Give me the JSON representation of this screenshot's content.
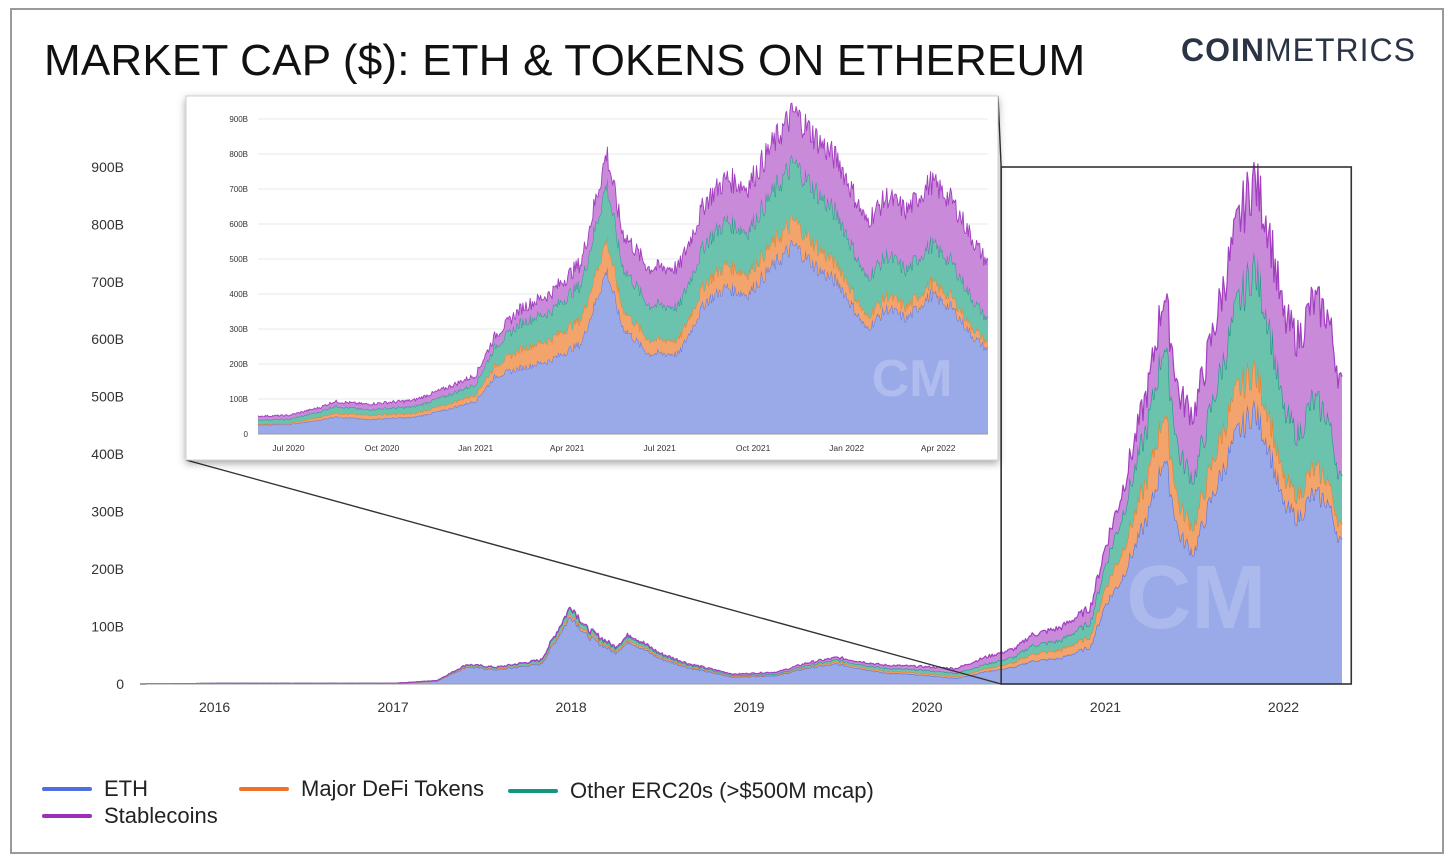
{
  "title": "MARKET CAP ($): ETH & TOKENS ON ETHEREUM",
  "brand": {
    "bold": "COIN",
    "light": "METRICS"
  },
  "colors": {
    "eth": "#5b73e0",
    "eth_fill": "#9aaae8",
    "defi": "#f07f2e",
    "defi_fill": "#f3a46c",
    "erc20": "#1e9a86",
    "erc20_fill": "#6cc3ad",
    "stable": "#a23fc0",
    "stable_fill": "#c98ad9"
  },
  "chart_data": [
    {
      "type": "area",
      "stacked": true,
      "yticks": [
        "0",
        "100B",
        "200B",
        "300B",
        "400B",
        "500B",
        "600B",
        "700B",
        "800B",
        "900B"
      ],
      "ylim": [
        0,
        900
      ],
      "y_unit": "B USD",
      "xticks": [
        "2016",
        "2017",
        "2018",
        "2019",
        "2020",
        "2021",
        "2022"
      ],
      "xlim": [
        "2015-08",
        "2022-05"
      ],
      "x": [
        "2015-08",
        "2016-01",
        "2016-06",
        "2017-01",
        "2017-04",
        "2017-06",
        "2017-08",
        "2017-11",
        "2018-01",
        "2018-02",
        "2018-04",
        "2018-05",
        "2018-07",
        "2018-09",
        "2018-12",
        "2019-03",
        "2019-05",
        "2019-07",
        "2019-10",
        "2020-01",
        "2020-03",
        "2020-05",
        "2020-07",
        "2020-08",
        "2020-10",
        "2020-12",
        "2021-01",
        "2021-02",
        "2021-04",
        "2021-05",
        "2021-06",
        "2021-07",
        "2021-08",
        "2021-09",
        "2021-10",
        "2021-11",
        "2021-12",
        "2022-01",
        "2022-02",
        "2022-03",
        "2022-04",
        "2022-05"
      ],
      "series": [
        {
          "name": "ETH",
          "values": [
            0,
            1,
            1,
            1,
            5,
            30,
            25,
            35,
            120,
            85,
            55,
            75,
            45,
            28,
            12,
            15,
            28,
            35,
            20,
            15,
            10,
            22,
            30,
            40,
            45,
            65,
            140,
            180,
            300,
            400,
            260,
            230,
            310,
            380,
            440,
            480,
            420,
            310,
            290,
            330,
            320,
            240
          ]
        },
        {
          "name": "Major DeFi Tokens",
          "values": [
            0,
            0,
            0,
            0,
            0,
            1,
            1,
            2,
            5,
            4,
            3,
            4,
            3,
            2,
            1,
            1,
            2,
            3,
            3,
            3,
            3,
            5,
            8,
            12,
            14,
            18,
            30,
            45,
            70,
            80,
            50,
            45,
            55,
            70,
            75,
            70,
            60,
            45,
            40,
            45,
            40,
            25
          ]
        },
        {
          "name": "Other ERC20s (>$500M mcap)",
          "values": [
            0,
            0,
            0,
            0,
            1,
            3,
            3,
            4,
            10,
            7,
            5,
            6,
            4,
            3,
            2,
            2,
            3,
            4,
            5,
            6,
            6,
            8,
            10,
            15,
            17,
            25,
            40,
            60,
            95,
            120,
            90,
            85,
            100,
            120,
            150,
            180,
            160,
            120,
            105,
            120,
            110,
            80
          ]
        },
        {
          "name": "Stablecoins",
          "values": [
            0,
            0,
            0,
            0,
            0,
            0,
            0,
            1,
            2,
            2,
            2,
            2,
            2,
            2,
            2,
            3,
            4,
            4,
            5,
            6,
            8,
            12,
            14,
            18,
            22,
            25,
            30,
            40,
            60,
            85,
            100,
            110,
            115,
            125,
            140,
            150,
            160,
            160,
            165,
            170,
            175,
            165
          ]
        }
      ]
    },
    {
      "type": "area",
      "stacked": true,
      "yticks": [
        "0",
        "100B",
        "200B",
        "300B",
        "400B",
        "500B",
        "600B",
        "700B",
        "800B",
        "900B"
      ],
      "ylim": [
        0,
        900
      ],
      "y_unit": "B USD",
      "xticks": [
        "Jul 2020",
        "Oct 2020",
        "Jan 2021",
        "Apr 2021",
        "Jul 2021",
        "Oct 2021",
        "Jan 2022",
        "Apr 2022"
      ],
      "xlim": [
        "2020-06-01",
        "2022-05-20"
      ],
      "x": [
        "2020-06-01",
        "2020-07-01",
        "2020-08-01",
        "2020-08-15",
        "2020-09-15",
        "2020-11-01",
        "2020-12-01",
        "2021-01-01",
        "2021-01-20",
        "2021-02-15",
        "2021-03-15",
        "2021-04-15",
        "2021-05-10",
        "2021-05-25",
        "2021-06-20",
        "2021-07-20",
        "2021-08-15",
        "2021-09-05",
        "2021-09-25",
        "2021-10-20",
        "2021-11-10",
        "2021-12-05",
        "2021-12-25",
        "2022-01-20",
        "2022-02-10",
        "2022-03-01",
        "2022-03-25",
        "2022-04-15",
        "2022-05-05",
        "2022-05-20"
      ],
      "series": [
        {
          "name": "ETH",
          "values": [
            27,
            27,
            40,
            50,
            42,
            48,
            68,
            95,
            165,
            190,
            210,
            260,
            470,
            310,
            230,
            230,
            380,
            420,
            400,
            480,
            540,
            470,
            430,
            300,
            360,
            330,
            400,
            360,
            280,
            240
          ]
        },
        {
          "name": "Major DeFi Tokens",
          "values": [
            2,
            3,
            8,
            10,
            12,
            10,
            14,
            18,
            30,
            55,
            60,
            70,
            90,
            55,
            40,
            40,
            55,
            65,
            60,
            65,
            70,
            60,
            50,
            35,
            38,
            32,
            35,
            30,
            25,
            20
          ]
        },
        {
          "name": "Other ERC20s (>$500M mcap)",
          "values": [
            12,
            12,
            16,
            20,
            16,
            20,
            25,
            30,
            55,
            75,
            80,
            100,
            160,
            120,
            100,
            95,
            115,
            125,
            120,
            145,
            165,
            155,
            140,
            110,
            115,
            105,
            110,
            100,
            80,
            65
          ]
        },
        {
          "name": "Stablecoins",
          "values": [
            10,
            11,
            12,
            13,
            15,
            18,
            22,
            25,
            30,
            40,
            50,
            60,
            85,
            95,
            105,
            110,
            115,
            120,
            125,
            135,
            145,
            150,
            155,
            160,
            165,
            170,
            175,
            175,
            170,
            160
          ]
        }
      ]
    }
  ],
  "legend": [
    {
      "label": "ETH",
      "color": "#4f6fe0"
    },
    {
      "label": "Major DeFi Tokens",
      "color": "#f0722a"
    },
    {
      "label": "Other ERC20s (>$500M mcap)",
      "color": "#14957f"
    },
    {
      "label": "Stablecoins",
      "color": "#9b2fb8"
    }
  ]
}
